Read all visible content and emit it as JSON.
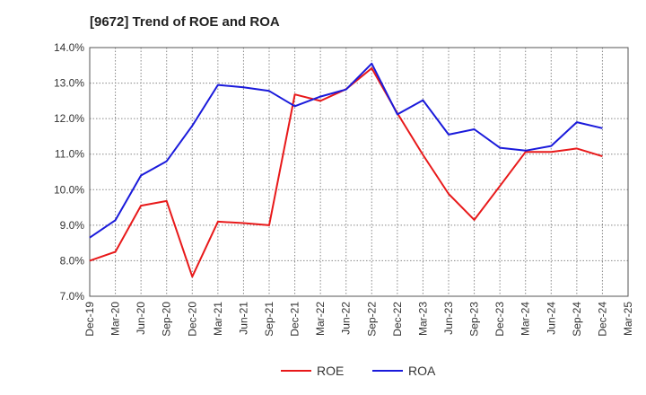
{
  "chart_data": {
    "type": "line",
    "title": "[9672]  Trend of ROE and ROA",
    "xlabel": "",
    "ylabel": "",
    "ylim": [
      7.0,
      14.0
    ],
    "ytick_values": [
      7.0,
      8.0,
      9.0,
      10.0,
      11.0,
      12.0,
      13.0,
      14.0
    ],
    "ytick_labels": [
      "7.0%",
      "8.0%",
      "9.0%",
      "10.0%",
      "11.0%",
      "12.0%",
      "13.0%",
      "14.0%"
    ],
    "categories": [
      "Dec-19",
      "Mar-20",
      "Jun-20",
      "Sep-20",
      "Dec-20",
      "Mar-21",
      "Jun-21",
      "Sep-21",
      "Dec-21",
      "Mar-22",
      "Jun-22",
      "Sep-22",
      "Dec-22",
      "Mar-23",
      "Jun-23",
      "Sep-23",
      "Dec-23",
      "Mar-24",
      "Jun-24",
      "Sep-24",
      "Dec-24",
      "Mar-25"
    ],
    "grid": true,
    "legend_position": "bottom-center",
    "series": [
      {
        "name": "ROE",
        "color": "#e8191a",
        "values": [
          8.0,
          8.25,
          9.55,
          9.68,
          7.55,
          9.1,
          9.06,
          9.0,
          12.68,
          12.5,
          12.83,
          13.42,
          12.15,
          10.98,
          9.88,
          9.15,
          10.1,
          11.06,
          11.06,
          11.16,
          10.94,
          null
        ]
      },
      {
        "name": "ROA",
        "color": "#1a1adb",
        "values": [
          8.65,
          9.14,
          10.4,
          10.8,
          11.8,
          12.95,
          12.88,
          12.78,
          12.35,
          12.62,
          12.82,
          13.55,
          12.12,
          12.52,
          11.55,
          11.7,
          11.18,
          11.1,
          11.23,
          11.9,
          11.73,
          null
        ]
      }
    ]
  }
}
